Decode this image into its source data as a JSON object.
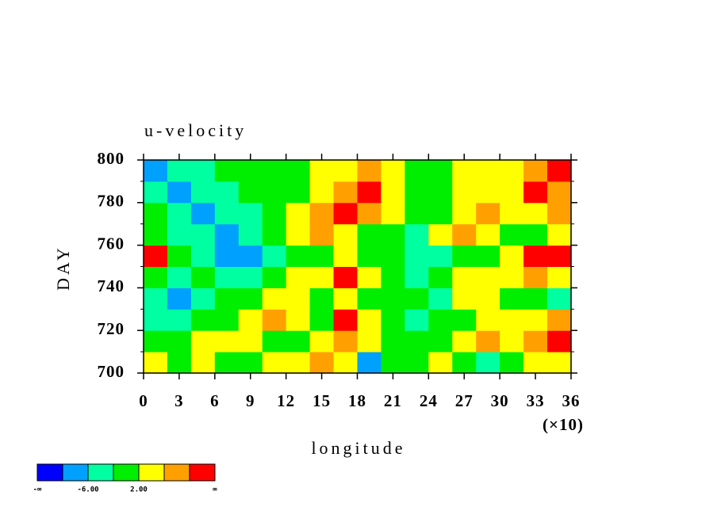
{
  "chart_data": {
    "type": "heatmap",
    "title": "u-velocity",
    "x_label": "longitude",
    "y_label": "DAY",
    "x_multiplier": "(×10)",
    "xlim": [
      0,
      36
    ],
    "xticks": [
      0,
      3,
      6,
      9,
      12,
      15,
      18,
      21,
      24,
      27,
      30,
      33,
      36
    ],
    "ylim": [
      700,
      800
    ],
    "yticks": [
      700,
      720,
      740,
      760,
      780,
      800
    ],
    "levels": [
      -10,
      -6,
      -2,
      2,
      6,
      10
    ],
    "colors": [
      "#0000ff",
      "#00a0ff",
      "#00ffa0",
      "#00ee00",
      "#ffff00",
      "#ffa000",
      "#ff0000"
    ],
    "colorbar_end_labels": [
      "-∞",
      "∞"
    ],
    "colorbar_ticks": [
      {
        "value": -6,
        "label": "-6.00"
      },
      {
        "value": 2,
        "label": "2.00"
      }
    ],
    "z": [
      [
        4,
        0,
        4,
        0,
        0,
        4,
        4,
        8,
        4,
        -8,
        0,
        0,
        4,
        0,
        -4,
        0,
        4,
        4
      ],
      [
        0,
        0,
        4,
        4,
        4,
        0,
        0,
        4,
        8,
        4,
        0,
        0,
        0,
        4,
        8,
        4,
        8,
        12
      ],
      [
        -4,
        -4,
        0,
        0,
        4,
        8,
        4,
        0,
        12,
        4,
        0,
        -4,
        0,
        0,
        4,
        4,
        4,
        8
      ],
      [
        -4,
        -8,
        -4,
        0,
        0,
        4,
        4,
        0,
        4,
        0,
        0,
        0,
        -4,
        4,
        4,
        0,
        0,
        -4
      ],
      [
        0,
        -4,
        0,
        -4,
        -4,
        0,
        4,
        4,
        12,
        4,
        0,
        -4,
        0,
        4,
        4,
        4,
        8,
        4
      ],
      [
        12,
        0,
        -4,
        -8,
        -8,
        -4,
        0,
        0,
        4,
        0,
        0,
        -4,
        -4,
        0,
        0,
        4,
        12,
        12
      ],
      [
        0,
        -4,
        -4,
        -8,
        -4,
        0,
        4,
        8,
        4,
        0,
        0,
        -4,
        4,
        8,
        4,
        0,
        0,
        4
      ],
      [
        0,
        -4,
        -8,
        -4,
        -4,
        0,
        4,
        8,
        12,
        8,
        4,
        0,
        0,
        4,
        8,
        4,
        4,
        8
      ],
      [
        -4,
        -8,
        -4,
        -4,
        0,
        0,
        0,
        4,
        8,
        12,
        4,
        0,
        0,
        4,
        4,
        4,
        12,
        8
      ],
      [
        -8,
        -4,
        -4,
        0,
        0,
        0,
        0,
        4,
        4,
        8,
        4,
        0,
        0,
        4,
        4,
        4,
        8,
        12
      ]
    ]
  }
}
